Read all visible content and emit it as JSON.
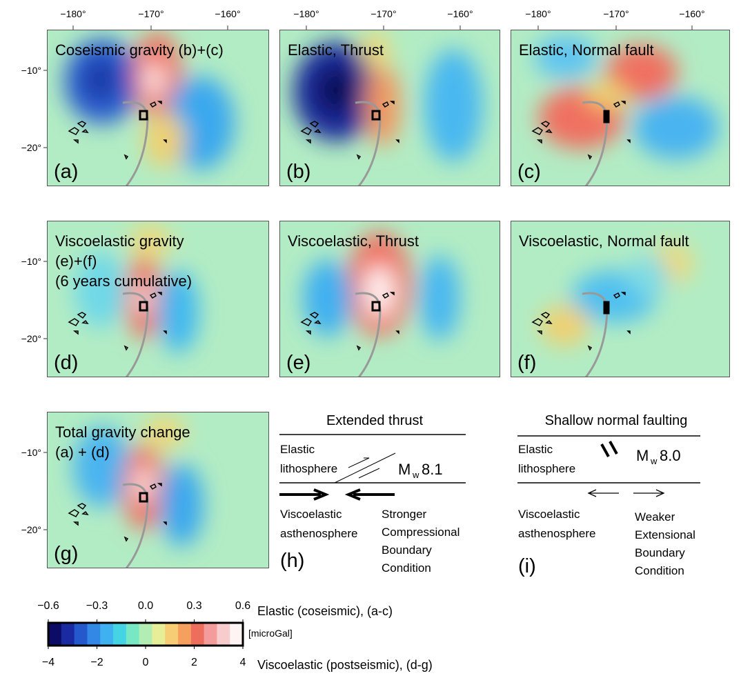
{
  "axes": {
    "x_ticks": [
      "−180°",
      "−170°",
      "−160°"
    ],
    "y_ticks": [
      "−10°",
      "−20°"
    ]
  },
  "panels": [
    {
      "title": [
        "Coseismic gravity (b)+(c)"
      ],
      "label": "(a)"
    },
    {
      "title": [
        "Elastic, Thrust"
      ],
      "label": "(b)"
    },
    {
      "title": [
        "Elastic, Normal fault"
      ],
      "label": "(c)"
    },
    {
      "title": [
        "Viscoelastic gravity",
        "(e)+(f)",
        "(6 years cumulative)"
      ],
      "label": "(d)"
    },
    {
      "title": [
        "Viscoelastic, Thrust"
      ],
      "label": "(e)"
    },
    {
      "title": [
        "Viscoelastic, Normal fault"
      ],
      "label": "(f)"
    },
    {
      "title": [
        "Total gravity change",
        "(a) + (d)"
      ],
      "label": "(g)"
    }
  ],
  "diagrams": [
    {
      "title": "Extended thrust",
      "upper": [
        "Elastic",
        "lithosphere"
      ],
      "magnitude": {
        "symbol": "M",
        "subscript": "w",
        "value": "8.1"
      },
      "lower": [
        "Viscoelastic",
        "asthenosphere"
      ],
      "condition": [
        "Stronger",
        "Compressional",
        "Boundary",
        "Condition"
      ],
      "label": "(h)"
    },
    {
      "title": "Shallow normal faulting",
      "upper": [
        "Elastic",
        "lithosphere"
      ],
      "magnitude": {
        "symbol": "M",
        "subscript": "w",
        "value": "8.0"
      },
      "lower": [
        "Viscoelastic",
        "asthenosphere"
      ],
      "condition": [
        "Weaker",
        "Extensional",
        "Boundary",
        "Condition"
      ],
      "label": "(i)"
    }
  ],
  "colorbar": {
    "colors": [
      "#0c0c66",
      "#1a2aa0",
      "#2458cc",
      "#3388e6",
      "#3fb0f0",
      "#44d4e4",
      "#78e8c4",
      "#b2eeb4",
      "#e6ee98",
      "#f6cc74",
      "#f6a060",
      "#ee6e5e",
      "#f49c9c",
      "#f8cccc",
      "#fff4f4"
    ],
    "top_ticks": [
      {
        "value": -0.6,
        "label": "−0.6"
      },
      {
        "value": -0.3,
        "label": "−0.3"
      },
      {
        "value": 0,
        "label": "0.0"
      },
      0.3,
      0.6
    ],
    "bottom_ticks": [
      {
        "value": -4,
        "label": "−4"
      },
      {
        "value": -2,
        "label": "−2"
      },
      0,
      2,
      4
    ],
    "top_title": "Elastic (coseismic), (a-c)",
    "unit": "[microGal]",
    "bottom_title": "Viscoelastic (postseismic), (d-g)"
  }
}
